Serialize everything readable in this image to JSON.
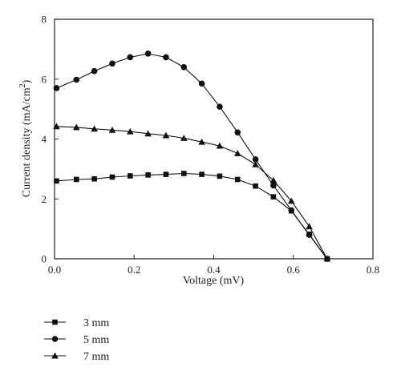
{
  "chart_data": {
    "type": "line",
    "xlabel": "Voltage (mV)",
    "ylabel_main": "Current density (mA/cm",
    "ylabel_sup": "2",
    "ylabel_tail": ")",
    "xlim": [
      0,
      0.8
    ],
    "ylim": [
      0,
      8
    ],
    "xticks": [
      0,
      0.2,
      0.4,
      0.6,
      0.8
    ],
    "xtick_labels": [
      "0.0",
      "0.2",
      "0.4",
      "0.6",
      "0.8"
    ],
    "yticks": [
      0,
      2,
      4,
      6,
      8
    ],
    "ytick_labels": [
      "0",
      "2",
      "4",
      "6",
      "8"
    ],
    "grid": false,
    "legend_position": "bottom-left",
    "series": [
      {
        "name": "3 mm",
        "marker": "square",
        "x": [
          0.005,
          0.055,
          0.1,
          0.145,
          0.19,
          0.235,
          0.28,
          0.325,
          0.37,
          0.415,
          0.46,
          0.505,
          0.55,
          0.595,
          0.64,
          0.685
        ],
        "y": [
          2.6,
          2.65,
          2.67,
          2.73,
          2.77,
          2.8,
          2.82,
          2.85,
          2.82,
          2.76,
          2.65,
          2.43,
          2.07,
          1.6,
          0.82,
          0.0
        ]
      },
      {
        "name": "5 mm",
        "marker": "circle",
        "x": [
          0.005,
          0.055,
          0.1,
          0.145,
          0.19,
          0.235,
          0.28,
          0.325,
          0.37,
          0.415,
          0.46,
          0.505,
          0.55,
          0.595,
          0.64,
          0.685
        ],
        "y": [
          5.7,
          5.98,
          6.27,
          6.52,
          6.73,
          6.85,
          6.73,
          6.4,
          5.85,
          5.08,
          4.22,
          3.32,
          2.45,
          1.62,
          0.8,
          0.0
        ]
      },
      {
        "name": "7 mm",
        "marker": "triangle",
        "x": [
          0.005,
          0.055,
          0.1,
          0.145,
          0.19,
          0.235,
          0.28,
          0.325,
          0.37,
          0.415,
          0.46,
          0.505,
          0.55,
          0.595,
          0.64,
          0.685
        ],
        "y": [
          4.42,
          4.39,
          4.34,
          4.3,
          4.25,
          4.18,
          4.12,
          4.03,
          3.9,
          3.77,
          3.52,
          3.15,
          2.62,
          1.93,
          1.08,
          0.0
        ]
      }
    ]
  }
}
